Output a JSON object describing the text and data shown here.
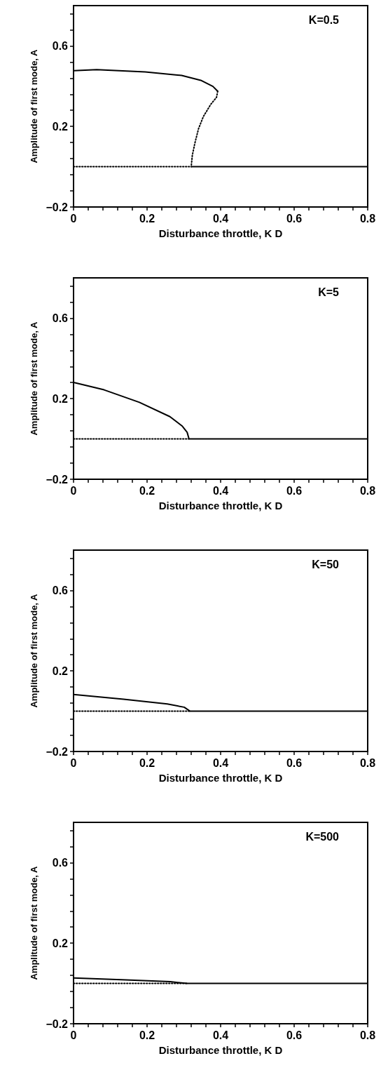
{
  "chart_data": [
    {
      "type": "line",
      "xlabel": "Disturbance throttle, K D",
      "ylabel": "Amplitude of first mode, A",
      "annotations": [
        "K=0.5"
      ],
      "marker": "none",
      "xlim": [
        0,
        0.8
      ],
      "ylim": [
        -0.2,
        0.8
      ],
      "xticks": [
        0,
        {
          "value": 0.04,
          "label": null
        },
        {
          "value": 0.08,
          "label": null
        },
        {
          "value": 0.12,
          "label": null
        },
        {
          "value": 0.16,
          "label": null
        },
        0.2,
        {
          "value": 0.24,
          "label": null
        },
        {
          "value": 0.28,
          "label": null
        },
        {
          "value": 0.32,
          "label": null
        },
        {
          "value": 0.36,
          "label": null
        },
        0.4,
        {
          "value": 0.44,
          "label": null
        },
        {
          "value": 0.48,
          "label": null
        },
        {
          "value": 0.52,
          "label": null
        },
        {
          "value": 0.56,
          "label": null
        },
        0.6,
        {
          "value": 0.64,
          "label": null
        },
        {
          "value": 0.68,
          "label": null
        },
        {
          "value": 0.72,
          "label": null
        },
        {
          "value": 0.76,
          "label": null
        },
        0.8
      ],
      "yticks": [
        -0.2,
        {
          "value": -0.12,
          "label": null
        },
        {
          "value": -0.04,
          "label": null
        },
        {
          "value": 0.04,
          "label": null
        },
        {
          "value": 0.12,
          "label": null
        },
        0.2,
        {
          "value": 0.28,
          "label": null
        },
        {
          "value": 0.36,
          "label": null
        },
        {
          "value": 0.44,
          "label": null
        },
        {
          "value": 0.52,
          "label": null
        },
        0.6,
        {
          "value": 0.68,
          "label": null
        },
        {
          "value": 0.76,
          "label": null
        }
      ],
      "series": [
        {
          "color": "#000000",
          "line_style": "solid",
          "x": [
            0,
            0.063,
            0.195,
            0.294,
            0.346,
            0.379,
            0.392
          ],
          "values": [
            0.477,
            0.482,
            0.471,
            0.453,
            0.429,
            0.399,
            0.375
          ]
        },
        {
          "color": "#000000",
          "line_style": "dotted",
          "x": [
            0.392,
            0.389,
            0.373,
            0.353,
            0.34,
            0.33,
            0.323,
            0.32
          ],
          "values": [
            0.375,
            0.345,
            0.309,
            0.249,
            0.189,
            0.117,
            0.056,
            0
          ]
        },
        {
          "color": "#000000",
          "line_style": "dotted",
          "x": [
            0,
            0.32
          ],
          "values": [
            0,
            0
          ]
        },
        {
          "color": "#000000",
          "line_style": "solid",
          "x": [
            0.32,
            0.8
          ],
          "values": [
            0,
            0
          ]
        }
      ]
    },
    {
      "type": "line",
      "xlabel": "Disturbance throttle, K D",
      "ylabel": "Amplitude of first mode, A",
      "annotations": [
        "K=5"
      ],
      "marker": "none",
      "xlim": [
        0,
        0.8
      ],
      "ylim": [
        -0.2,
        0.8
      ],
      "xticks": [
        0,
        {
          "value": 0.04,
          "label": null
        },
        {
          "value": 0.08,
          "label": null
        },
        {
          "value": 0.12,
          "label": null
        },
        {
          "value": 0.16,
          "label": null
        },
        0.2,
        {
          "value": 0.24,
          "label": null
        },
        {
          "value": 0.28,
          "label": null
        },
        {
          "value": 0.32,
          "label": null
        },
        {
          "value": 0.36,
          "label": null
        },
        0.4,
        {
          "value": 0.44,
          "label": null
        },
        {
          "value": 0.48,
          "label": null
        },
        {
          "value": 0.52,
          "label": null
        },
        {
          "value": 0.56,
          "label": null
        },
        0.6,
        {
          "value": 0.64,
          "label": null
        },
        {
          "value": 0.68,
          "label": null
        },
        {
          "value": 0.72,
          "label": null
        },
        {
          "value": 0.76,
          "label": null
        },
        0.8
      ],
      "yticks": [
        -0.2,
        {
          "value": -0.12,
          "label": null
        },
        {
          "value": -0.04,
          "label": null
        },
        {
          "value": 0.04,
          "label": null
        },
        {
          "value": 0.12,
          "label": null
        },
        0.2,
        {
          "value": 0.28,
          "label": null
        },
        {
          "value": 0.36,
          "label": null
        },
        {
          "value": 0.44,
          "label": null
        },
        {
          "value": 0.52,
          "label": null
        },
        0.6,
        {
          "value": 0.68,
          "label": null
        },
        {
          "value": 0.76,
          "label": null
        }
      ],
      "series": [
        {
          "color": "#000000",
          "line_style": "solid",
          "x": [
            0,
            0.083,
            0.179,
            0.262,
            0.295,
            0.309,
            0.314,
            0.8
          ],
          "values": [
            0.281,
            0.244,
            0.182,
            0.111,
            0.065,
            0.033,
            0,
            0
          ]
        },
        {
          "color": "#000000",
          "line_style": "dotted",
          "x": [
            0,
            0.314
          ],
          "values": [
            0,
            0
          ]
        }
      ]
    },
    {
      "type": "line",
      "xlabel": "Disturbance throttle, K D",
      "ylabel": "Amplitude of first mode, A",
      "annotations": [
        "K=50"
      ],
      "marker": "none",
      "xlim": [
        0,
        0.8
      ],
      "ylim": [
        -0.2,
        0.8
      ],
      "xticks": [
        0,
        {
          "value": 0.04,
          "label": null
        },
        {
          "value": 0.08,
          "label": null
        },
        {
          "value": 0.12,
          "label": null
        },
        {
          "value": 0.16,
          "label": null
        },
        0.2,
        {
          "value": 0.24,
          "label": null
        },
        {
          "value": 0.28,
          "label": null
        },
        {
          "value": 0.32,
          "label": null
        },
        {
          "value": 0.36,
          "label": null
        },
        0.4,
        {
          "value": 0.44,
          "label": null
        },
        {
          "value": 0.48,
          "label": null
        },
        {
          "value": 0.52,
          "label": null
        },
        {
          "value": 0.56,
          "label": null
        },
        0.6,
        {
          "value": 0.64,
          "label": null
        },
        {
          "value": 0.68,
          "label": null
        },
        {
          "value": 0.72,
          "label": null
        },
        {
          "value": 0.76,
          "label": null
        },
        0.8
      ],
      "yticks": [
        -0.2,
        {
          "value": -0.12,
          "label": null
        },
        {
          "value": -0.04,
          "label": null
        },
        {
          "value": 0.04,
          "label": null
        },
        {
          "value": 0.12,
          "label": null
        },
        0.2,
        {
          "value": 0.28,
          "label": null
        },
        {
          "value": 0.36,
          "label": null
        },
        {
          "value": 0.44,
          "label": null
        },
        {
          "value": 0.52,
          "label": null
        },
        0.6,
        {
          "value": 0.68,
          "label": null
        },
        {
          "value": 0.76,
          "label": null
        }
      ],
      "series": [
        {
          "color": "#000000",
          "line_style": "solid",
          "x": [
            0,
            0.136,
            0.255,
            0.301,
            0.317,
            0.8
          ],
          "values": [
            0.083,
            0.06,
            0.036,
            0.02,
            0,
            0
          ]
        },
        {
          "color": "#000000",
          "line_style": "dotted",
          "x": [
            0,
            0.317
          ],
          "values": [
            0,
            0
          ]
        }
      ]
    },
    {
      "type": "line",
      "xlabel": "Disturbance throttle, K D",
      "ylabel": "Amplitude of first mode, A",
      "annotations": [
        "K=500"
      ],
      "marker": "none",
      "xlim": [
        0,
        0.8
      ],
      "ylim": [
        -0.2,
        0.8
      ],
      "xticks": [
        0,
        {
          "value": 0.04,
          "label": null
        },
        {
          "value": 0.08,
          "label": null
        },
        {
          "value": 0.12,
          "label": null
        },
        {
          "value": 0.16,
          "label": null
        },
        0.2,
        {
          "value": 0.24,
          "label": null
        },
        {
          "value": 0.28,
          "label": null
        },
        {
          "value": 0.32,
          "label": null
        },
        {
          "value": 0.36,
          "label": null
        },
        0.4,
        {
          "value": 0.44,
          "label": null
        },
        {
          "value": 0.48,
          "label": null
        },
        {
          "value": 0.52,
          "label": null
        },
        {
          "value": 0.56,
          "label": null
        },
        0.6,
        {
          "value": 0.64,
          "label": null
        },
        {
          "value": 0.68,
          "label": null
        },
        {
          "value": 0.72,
          "label": null
        },
        {
          "value": 0.76,
          "label": null
        },
        0.8
      ],
      "yticks": [
        -0.2,
        {
          "value": -0.12,
          "label": null
        },
        {
          "value": -0.04,
          "label": null
        },
        {
          "value": 0.04,
          "label": null
        },
        {
          "value": 0.12,
          "label": null
        },
        0.2,
        {
          "value": 0.28,
          "label": null
        },
        {
          "value": 0.36,
          "label": null
        },
        {
          "value": 0.44,
          "label": null
        },
        {
          "value": 0.52,
          "label": null
        },
        0.6,
        {
          "value": 0.68,
          "label": null
        },
        {
          "value": 0.76,
          "label": null
        }
      ],
      "series": [
        {
          "color": "#000000",
          "line_style": "solid",
          "x": [
            0,
            0.13,
            0.263,
            0.309,
            0.8
          ],
          "values": [
            0.027,
            0.019,
            0.009,
            0,
            0
          ]
        },
        {
          "color": "#000000",
          "line_style": "dotted",
          "x": [
            0,
            0.309
          ],
          "values": [
            0,
            0
          ]
        }
      ]
    }
  ]
}
